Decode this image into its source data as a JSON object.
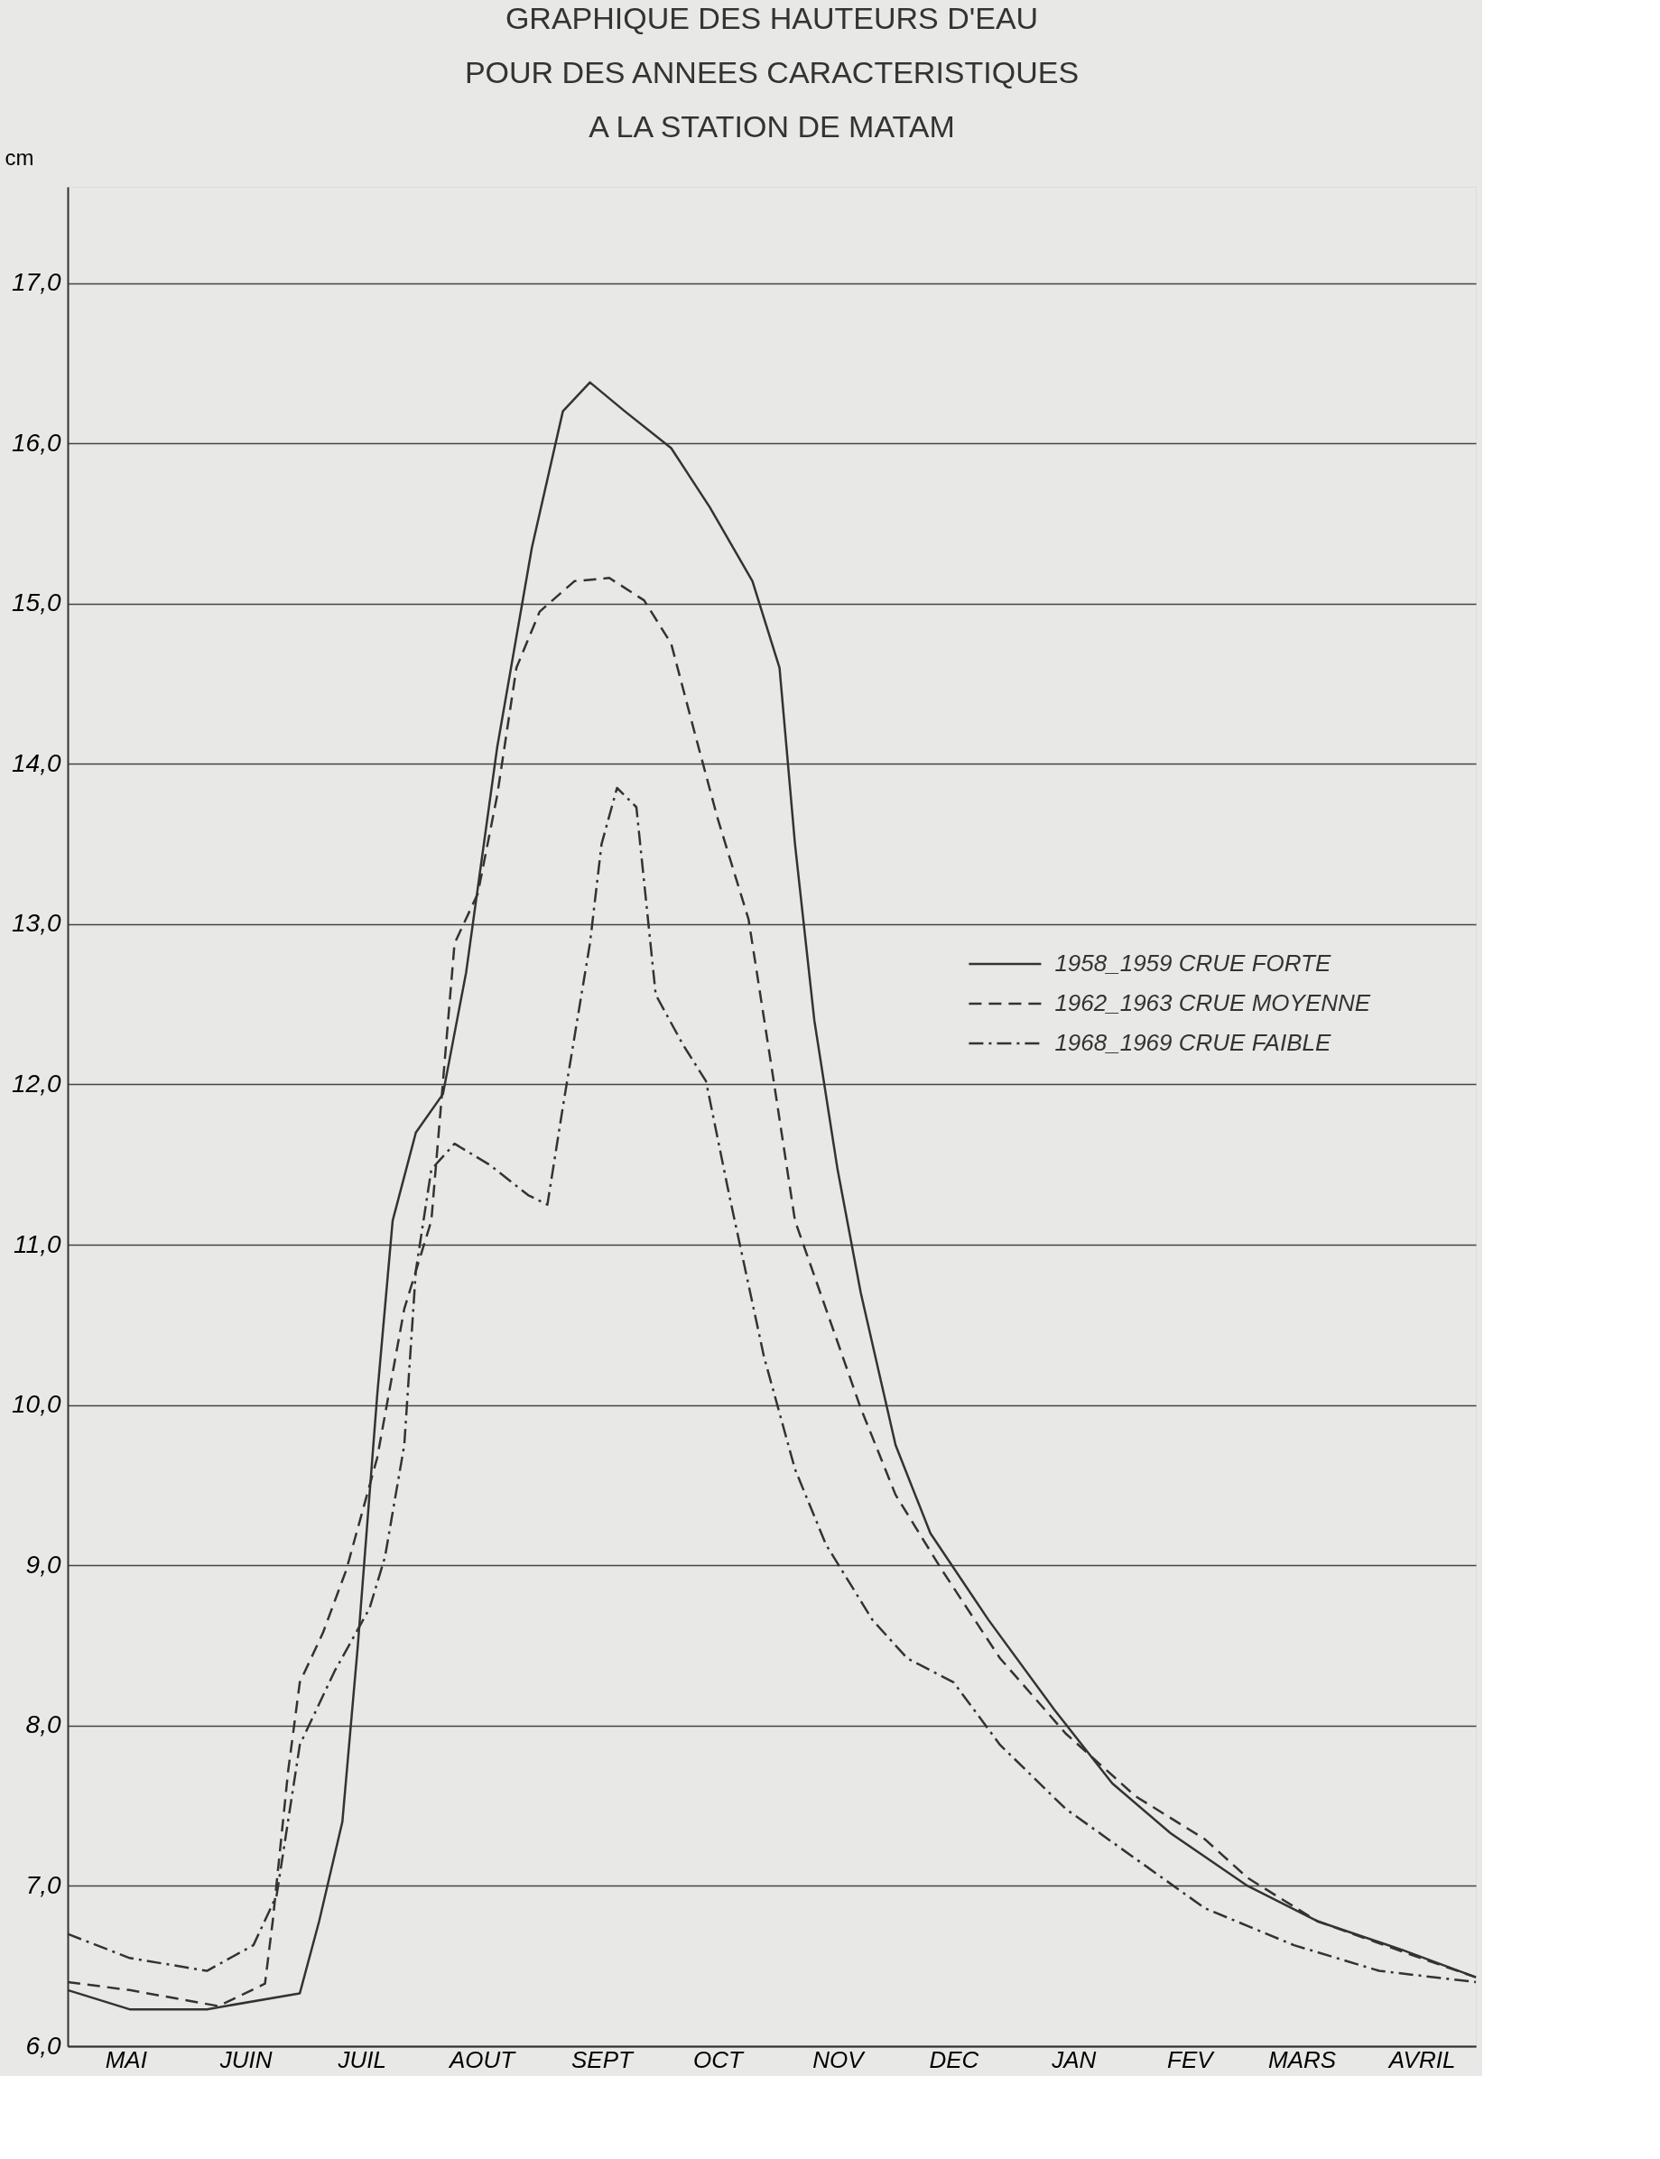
{
  "chart_data": {
    "type": "line",
    "title": [
      "GRAPHIQUE DES HAUTEURS D'EAU",
      "POUR DES ANNEES CARACTERISTIQUES",
      "A LA STATION DE MATAM"
    ],
    "ylabel": "cm",
    "xlim": [
      "1958-05-01",
      "1959-04-30"
    ],
    "ylim": [
      6,
      17.6
    ],
    "xticks": [
      {
        "value": "1958-05-16",
        "label": "MAI"
      },
      {
        "value": "1958-06-16",
        "label": "JUIN"
      },
      {
        "value": "1958-07-16",
        "label": "JUIL"
      },
      {
        "value": "1958-08-16",
        "label": "AOUT"
      },
      {
        "value": "1958-09-16",
        "label": "SEPT"
      },
      {
        "value": "1958-10-16",
        "label": "OCT"
      },
      {
        "value": "1958-11-16",
        "label": "NOV"
      },
      {
        "value": "1958-12-16",
        "label": "DEC"
      },
      {
        "value": "1959-01-16",
        "label": "JAN"
      },
      {
        "value": "1959-02-15",
        "label": "FEV"
      },
      {
        "value": "1959-03-16",
        "label": "MARS"
      },
      {
        "value": "1959-04-16",
        "label": "AVRIL"
      }
    ],
    "yticks": [
      {
        "value": 6,
        "label": "6,0"
      },
      {
        "value": 7,
        "label": "7,0"
      },
      {
        "value": 8,
        "label": "8,0"
      },
      {
        "value": 9,
        "label": "9,0"
      },
      {
        "value": 10,
        "label": "10,0"
      },
      {
        "value": 11,
        "label": "11,0"
      },
      {
        "value": 12,
        "label": "12,0"
      },
      {
        "value": 13,
        "label": "13,0"
      },
      {
        "value": 14,
        "label": "14,0"
      },
      {
        "value": 15,
        "label": "15,0"
      },
      {
        "value": 16,
        "label": "16,0"
      },
      {
        "value": 17,
        "label": "17,0"
      }
    ],
    "grid": "y",
    "legend": "right",
    "series": [
      {
        "name": "1958_1959 CRUE FORTE",
        "color": "#333333",
        "line_style": "solid",
        "x": [
          "1958-05-01",
          "1958-05-17",
          "1958-06-06",
          "1958-06-30",
          "1958-07-05",
          "1958-07-11",
          "1958-07-15",
          "1958-07-20",
          "1958-07-24",
          "1958-07-30",
          "1958-08-06",
          "1958-08-12",
          "1958-08-20",
          "1958-08-29",
          "1958-09-06",
          "1958-09-13",
          "1958-09-22",
          "1958-10-04",
          "1958-10-14",
          "1958-10-25",
          "1958-11-01",
          "1958-11-05",
          "1958-11-10",
          "1958-11-16",
          "1958-11-22",
          "1958-12-01",
          "1958-12-10",
          "1958-12-25",
          "1959-01-11",
          "1959-01-26",
          "1959-02-10",
          "1959-03-02",
          "1959-03-20",
          "1959-04-11",
          "1959-04-30"
        ],
        "values": [
          6.35,
          6.23,
          6.23,
          6.33,
          6.78,
          7.4,
          8.5,
          10.06,
          11.15,
          11.7,
          11.94,
          12.7,
          14.1,
          15.35,
          16.2,
          16.38,
          16.2,
          15.97,
          15.6,
          15.14,
          14.6,
          13.5,
          12.4,
          11.47,
          10.7,
          9.75,
          9.2,
          8.66,
          8.1,
          7.64,
          7.33,
          7.0,
          6.78,
          6.6,
          6.43
        ]
      },
      {
        "name": "1962_1963 CRUE MOYENNE",
        "color": "#333333",
        "line_style": "dashed",
        "x": [
          "1958-05-01",
          "1958-05-17",
          "1958-06-09",
          "1958-06-21",
          "1958-06-23",
          "1958-06-27",
          "1958-06-30",
          "1958-07-06",
          "1958-07-12",
          "1958-07-20",
          "1958-07-27",
          "1958-08-03",
          "1958-08-09",
          "1958-08-15",
          "1958-08-20",
          "1958-08-25",
          "1958-08-31",
          "1958-09-09",
          "1958-09-18",
          "1958-09-27",
          "1958-10-04",
          "1958-10-10",
          "1958-10-16",
          "1958-10-24",
          "1958-10-30",
          "1958-11-05",
          "1958-11-13",
          "1958-11-22",
          "1958-12-01",
          "1958-12-13",
          "1958-12-28",
          "1959-01-14",
          "1959-02-01",
          "1959-02-19",
          "1959-03-02",
          "1959-03-20",
          "1959-04-11",
          "1959-04-30"
        ],
        "values": [
          6.4,
          6.35,
          6.25,
          6.39,
          6.78,
          7.72,
          8.27,
          8.58,
          8.97,
          9.67,
          10.6,
          11.15,
          12.88,
          13.19,
          13.8,
          14.6,
          14.95,
          15.14,
          15.16,
          15.02,
          14.75,
          14.2,
          13.66,
          13.03,
          12.1,
          11.15,
          10.6,
          9.98,
          9.44,
          8.97,
          8.42,
          7.95,
          7.56,
          7.29,
          7.05,
          6.78,
          6.59,
          6.43
        ]
      },
      {
        "name": "1968_1969 CRUE FAIBLE",
        "color": "#333333",
        "line_style": "dashdot",
        "x": [
          "1958-05-01",
          "1958-05-17",
          "1958-06-06",
          "1958-06-18",
          "1958-06-24",
          "1958-06-30",
          "1958-07-09",
          "1958-07-18",
          "1958-07-22",
          "1958-07-27",
          "1958-07-30",
          "1958-08-03",
          "1958-08-09",
          "1958-08-18",
          "1958-08-28",
          "1958-09-02",
          "1958-09-06",
          "1958-09-13",
          "1958-09-16",
          "1958-09-20",
          "1958-09-25",
          "1958-09-28",
          "1958-09-30",
          "1958-10-07",
          "1958-10-13",
          "1958-10-19",
          "1958-10-28",
          "1958-11-05",
          "1958-11-13",
          "1958-11-25",
          "1958-12-04",
          "1958-12-16",
          "1958-12-28",
          "1959-01-14",
          "1959-02-01",
          "1959-02-19",
          "1959-03-14",
          "1959-04-05",
          "1959-04-30"
        ],
        "values": [
          6.7,
          6.55,
          6.47,
          6.63,
          6.94,
          7.88,
          8.34,
          8.73,
          9.05,
          9.75,
          10.84,
          11.47,
          11.63,
          11.5,
          11.31,
          11.25,
          11.86,
          12.88,
          13.5,
          13.85,
          13.73,
          13.03,
          12.56,
          12.25,
          12.02,
          11.31,
          10.3,
          9.6,
          9.13,
          8.66,
          8.42,
          8.27,
          7.88,
          7.48,
          7.17,
          6.86,
          6.63,
          6.47,
          6.4
        ]
      }
    ]
  }
}
